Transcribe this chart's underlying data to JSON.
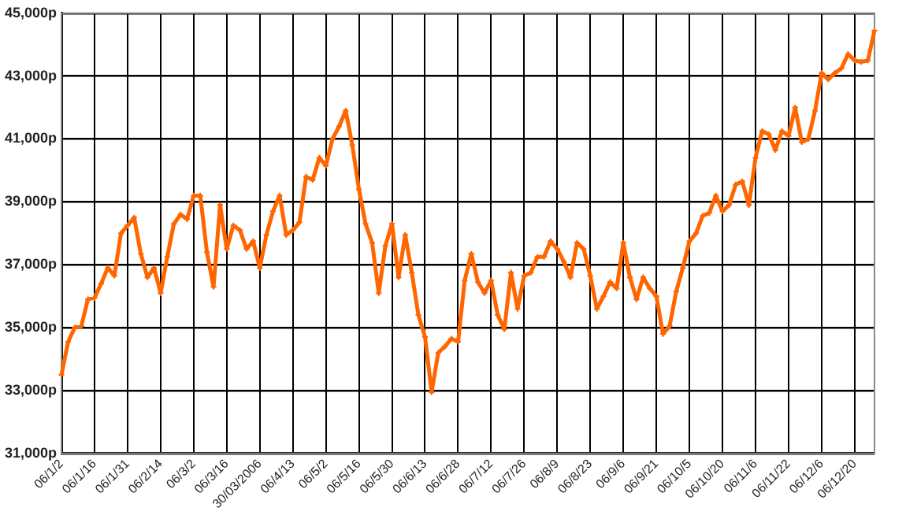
{
  "chart_data": {
    "type": "line",
    "categories": [
      "06/1/2",
      null,
      null,
      null,
      null,
      "06/1/16",
      null,
      null,
      null,
      null,
      "06/1/31",
      null,
      null,
      null,
      null,
      "06/2/14",
      null,
      null,
      null,
      null,
      "06/3/2",
      null,
      null,
      null,
      null,
      "06/3/16",
      null,
      null,
      null,
      null,
      "30/03/2006",
      null,
      null,
      null,
      null,
      "06/4/13",
      null,
      null,
      null,
      null,
      "06/5/2",
      null,
      null,
      null,
      null,
      "06/5/16",
      null,
      null,
      null,
      null,
      "06/5/30",
      null,
      null,
      null,
      null,
      "06/6/13",
      null,
      null,
      null,
      null,
      "06/6/28",
      null,
      null,
      null,
      null,
      "06/7/12",
      null,
      null,
      null,
      null,
      "06/7/26",
      null,
      null,
      null,
      null,
      "06/8/9",
      null,
      null,
      null,
      null,
      "06/8/23",
      null,
      null,
      null,
      null,
      "06/9/6",
      null,
      null,
      null,
      null,
      "06/9/21",
      null,
      null,
      null,
      null,
      "06/10/5",
      null,
      null,
      null,
      null,
      "06/10/20",
      null,
      null,
      null,
      null,
      "06/11/6",
      null,
      null,
      null,
      null,
      "06/11/22",
      null,
      null,
      null,
      null,
      "06/12/6",
      null,
      null,
      null,
      null,
      "06/12/20",
      null,
      null,
      null
    ],
    "series": [
      {
        "color": "#ff6600",
        "values": [
          33500,
          34550,
          35000,
          35050,
          35900,
          35950,
          36400,
          36900,
          36650,
          38000,
          38250,
          38500,
          37350,
          36600,
          36900,
          36100,
          37250,
          38300,
          38600,
          38450,
          39200,
          39200,
          37400,
          36300,
          38900,
          37500,
          38250,
          38100,
          37500,
          37750,
          36900,
          37950,
          38700,
          39200,
          37950,
          38100,
          38350,
          39800,
          39700,
          40400,
          40150,
          41000,
          41400,
          41900,
          40800,
          39400,
          38300,
          37700,
          36100,
          37600,
          38300,
          36600,
          37950,
          36750,
          35400,
          34700,
          32950,
          34200,
          34400,
          34650,
          34550,
          36500,
          37350,
          36450,
          36100,
          36500,
          35400,
          34950,
          36750,
          35600,
          36650,
          36750,
          37250,
          37250,
          37750,
          37500,
          37100,
          36600,
          37700,
          37500,
          36650,
          35600,
          36000,
          36450,
          36250,
          37700,
          36600,
          35900,
          36600,
          36250,
          36000,
          34800,
          35050,
          36150,
          36900,
          37750,
          38000,
          38550,
          38650,
          39200,
          38700,
          38900,
          39550,
          39650,
          38900,
          40400,
          41250,
          41150,
          40650,
          41250,
          41100,
          42000,
          40900,
          41000,
          41900,
          43100,
          42900,
          43100,
          43250,
          43700,
          43500,
          43450,
          43500,
          44450
        ]
      }
    ],
    "ylim": [
      31000,
      45000
    ],
    "yticks": [
      {
        "value": 31000,
        "label": "31,000p"
      },
      {
        "value": 33000,
        "label": "33,000p"
      },
      {
        "value": 35000,
        "label": "35,000p"
      },
      {
        "value": 37000,
        "label": "37,000p"
      },
      {
        "value": 39000,
        "label": "39,000p"
      },
      {
        "value": 41000,
        "label": "41,000p"
      },
      {
        "value": 43000,
        "label": "43,000p"
      },
      {
        "value": 45000,
        "label": "45,000p"
      }
    ],
    "grid": true,
    "legend": false,
    "marker": "cross",
    "line_style": "solid"
  }
}
